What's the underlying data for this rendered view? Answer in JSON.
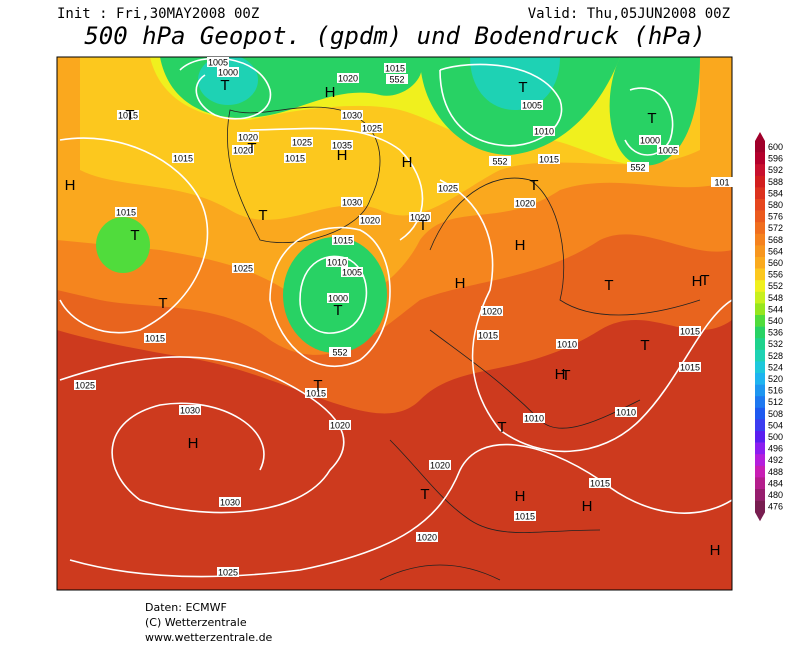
{
  "header": {
    "init": "Init : Fri,30MAY2008 00Z",
    "valid": "Valid: Thu,05JUN2008 00Z",
    "title": "500 hPa Geopot. (gpdm) und Bodendruck (hPa)"
  },
  "colorbar": {
    "levels": [
      600,
      596,
      592,
      588,
      584,
      580,
      576,
      572,
      568,
      564,
      560,
      556,
      552,
      548,
      544,
      540,
      536,
      532,
      528,
      524,
      520,
      516,
      512,
      508,
      504,
      500,
      496,
      492,
      488,
      484,
      480,
      476
    ],
    "colors": [
      "#a0002a",
      "#b4002c",
      "#c8102e",
      "#d21e1e",
      "#dc321e",
      "#e6461e",
      "#eb5a1e",
      "#f06e1e",
      "#f5821e",
      "#f7961e",
      "#faaa1e",
      "#fcc81e",
      "#f0f01e",
      "#c8f01e",
      "#96e61e",
      "#50dc3c",
      "#28d264",
      "#1ed28c",
      "#1ed2b4",
      "#1ec8dc",
      "#1eb4f0",
      "#1e96f0",
      "#1e78f0",
      "#1e5af0",
      "#3c3cf0",
      "#5a1ef0",
      "#8c1ef0",
      "#b41edc",
      "#c81eb4",
      "#b41e8c",
      "#961e6e",
      "#781e50"
    ]
  },
  "map": {
    "pressure_labels": [
      1005,
      1000,
      1020,
      1015,
      552,
      1015,
      1020,
      1025,
      1030,
      1025,
      1035,
      1015,
      1020,
      1015,
      1025,
      1030,
      1020,
      1015,
      1010,
      1005,
      1000,
      552,
      1015,
      1025,
      1015,
      1025,
      1030,
      1020,
      1015,
      1030,
      1025,
      1020,
      1020,
      1015,
      1015,
      1010,
      1010,
      1010,
      1015,
      1020,
      1020,
      1020,
      1005,
      1010,
      1015,
      552,
      1000,
      552,
      1005,
      1015,
      1015,
      101
    ],
    "centers": [
      "H",
      "H",
      "H",
      "H",
      "H",
      "H",
      "H",
      "H",
      "H",
      "H",
      "H",
      "H",
      "T",
      "T",
      "T",
      "T",
      "T",
      "T",
      "T",
      "T",
      "T",
      "T",
      "T",
      "T",
      "T",
      "T",
      "T",
      "T",
      "T",
      "T"
    ]
  },
  "footer": {
    "lines": [
      "Daten: ECMWF",
      "(C) Wetterzentrale",
      "www.wetterzentrale.de"
    ]
  }
}
